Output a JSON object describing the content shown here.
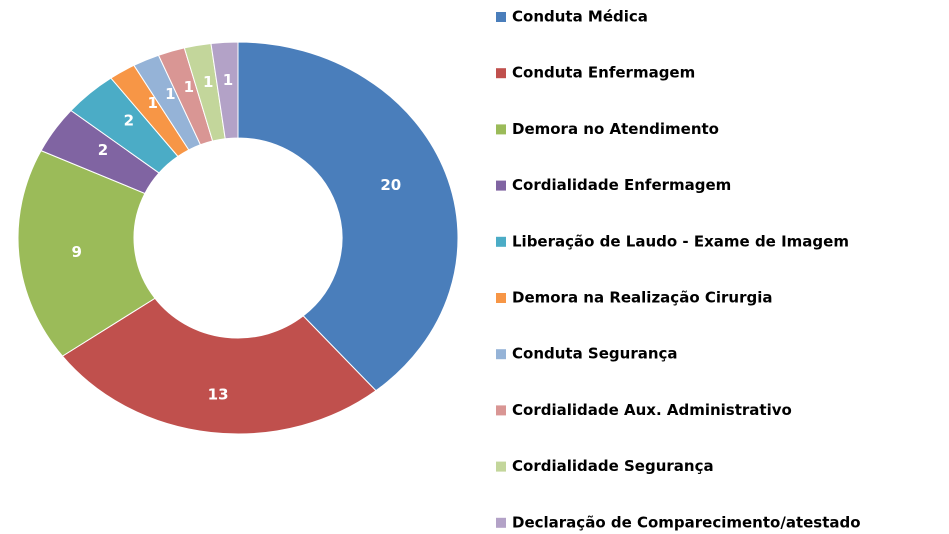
{
  "chart_data": {
    "type": "donut",
    "categories": [
      "Conduta Médica",
      "Conduta Enfermagem",
      "Demora no Atendimento",
      "Cordialidade Enfermagem",
      "Liberação de Laudo - Exame de Imagem",
      "Demora na Realização Cirurgia",
      "Conduta Segurança",
      "Cordialidade Aux. Administrativo",
      "Cordialidade Segurança",
      "Declaração de Comparecimento/atestado"
    ],
    "values": [
      20,
      13,
      9,
      2,
      2,
      1,
      1,
      1,
      1,
      1
    ],
    "colors": [
      "#4a7ebb",
      "#c0504d",
      "#9bbb59",
      "#8064a2",
      "#4bacc6",
      "#f79646",
      "#95b3d7",
      "#d99694",
      "#c3d69b",
      "#b3a2c7"
    ],
    "legend": "right"
  }
}
